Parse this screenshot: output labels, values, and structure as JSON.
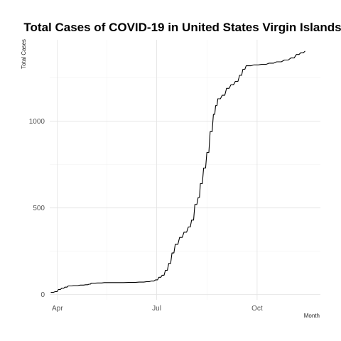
{
  "chart_data": {
    "type": "line",
    "title": "Total Cases of COVID-19 in United States Virgin Islands",
    "xlabel": "Month",
    "ylabel": "Total Cases",
    "x_type": "date",
    "xlim": [
      "2020-03-25",
      "2020-11-28"
    ],
    "ylim": [
      -30,
      1470
    ],
    "x_ticks": [
      {
        "value": "2020-04-01",
        "label": "Apr"
      },
      {
        "value": "2020-07-01",
        "label": "Jul"
      },
      {
        "value": "2020-10-01",
        "label": "Oct"
      }
    ],
    "y_ticks": [
      {
        "value": 0,
        "label": "0"
      },
      {
        "value": 500,
        "label": "500"
      },
      {
        "value": 1000,
        "label": "1000"
      }
    ],
    "grid": true,
    "legend": "none",
    "series": [
      {
        "color": "#000000",
        "points": [
          [
            "2020-03-26",
            13
          ],
          [
            "2020-03-30",
            17
          ],
          [
            "2020-04-02",
            30
          ],
          [
            "2020-04-05",
            37
          ],
          [
            "2020-04-08",
            43
          ],
          [
            "2020-04-11",
            50
          ],
          [
            "2020-04-16",
            52
          ],
          [
            "2020-04-22",
            55
          ],
          [
            "2020-04-27",
            57
          ],
          [
            "2020-04-30",
            60
          ],
          [
            "2020-05-02",
            66
          ],
          [
            "2020-05-08",
            67
          ],
          [
            "2020-05-14",
            69
          ],
          [
            "2020-05-25",
            69
          ],
          [
            "2020-06-05",
            70
          ],
          [
            "2020-06-15",
            72
          ],
          [
            "2020-06-22",
            75
          ],
          [
            "2020-06-26",
            78
          ],
          [
            "2020-06-30",
            85
          ],
          [
            "2020-07-03",
            100
          ],
          [
            "2020-07-06",
            112
          ],
          [
            "2020-07-09",
            140
          ],
          [
            "2020-07-12",
            180
          ],
          [
            "2020-07-15",
            240
          ],
          [
            "2020-07-18",
            290
          ],
          [
            "2020-07-22",
            330
          ],
          [
            "2020-07-26",
            360
          ],
          [
            "2020-07-30",
            390
          ],
          [
            "2020-08-02",
            430
          ],
          [
            "2020-08-05",
            520
          ],
          [
            "2020-08-08",
            560
          ],
          [
            "2020-08-10",
            640
          ],
          [
            "2020-08-13",
            730
          ],
          [
            "2020-08-16",
            820
          ],
          [
            "2020-08-19",
            940
          ],
          [
            "2020-08-22",
            1040
          ],
          [
            "2020-08-24",
            1090
          ],
          [
            "2020-08-26",
            1130
          ],
          [
            "2020-08-30",
            1150
          ],
          [
            "2020-09-03",
            1190
          ],
          [
            "2020-09-07",
            1210
          ],
          [
            "2020-09-11",
            1230
          ],
          [
            "2020-09-15",
            1265
          ],
          [
            "2020-09-18",
            1300
          ],
          [
            "2020-09-21",
            1320
          ],
          [
            "2020-09-28",
            1325
          ],
          [
            "2020-10-05",
            1328
          ],
          [
            "2020-10-12",
            1335
          ],
          [
            "2020-10-19",
            1343
          ],
          [
            "2020-10-26",
            1353
          ],
          [
            "2020-11-01",
            1365
          ],
          [
            "2020-11-06",
            1385
          ],
          [
            "2020-11-10",
            1395
          ],
          [
            "2020-11-14",
            1405
          ]
        ]
      }
    ]
  }
}
